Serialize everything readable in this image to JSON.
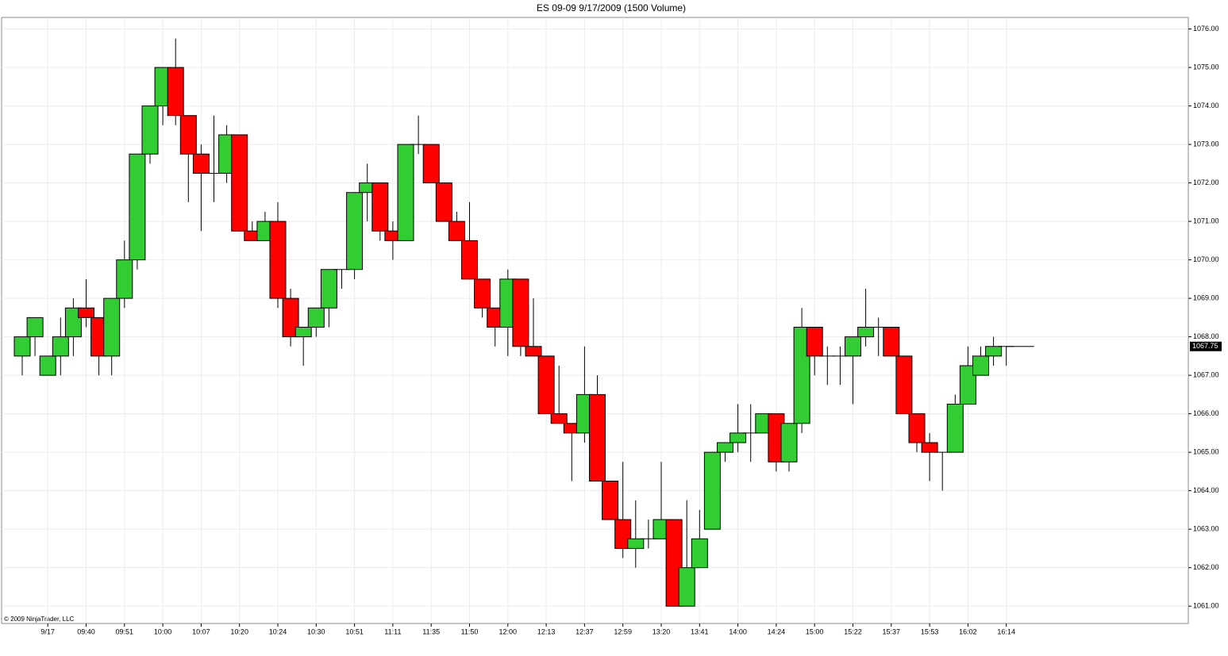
{
  "chart_data": {
    "type": "candlestick",
    "title": "ES 09-09  9/17/2009 (1500 Volume)",
    "copyright": "© 2009 NinjaTrader, LLC",
    "categories": [
      null,
      null,
      "9/17",
      null,
      null,
      "09:40",
      null,
      null,
      "09:51",
      null,
      null,
      "10:00",
      null,
      null,
      "10:07",
      null,
      null,
      "10:20",
      null,
      null,
      "10:24",
      null,
      null,
      "10:30",
      null,
      null,
      "10:51",
      null,
      null,
      "11:11",
      null,
      null,
      "11:35",
      null,
      null,
      "11:50",
      null,
      null,
      "12:00",
      null,
      null,
      "12:13",
      null,
      null,
      "12:37",
      null,
      null,
      "12:59",
      null,
      null,
      "13:20",
      null,
      null,
      "13:41",
      null,
      null,
      "14:00",
      null,
      null,
      "14:24",
      null,
      null,
      "15:00",
      null,
      null,
      "15:22",
      null,
      null,
      "15:37",
      null,
      null,
      "15:53",
      null,
      null,
      "16:02",
      null,
      null,
      "16:14"
    ],
    "open": [
      1067.5,
      1068,
      1067,
      1067.5,
      1068,
      1068.75,
      1068.5,
      1067.5,
      1069,
      1070,
      1072.75,
      1074,
      1075,
      1073.75,
      1072.75,
      1072.25,
      1072.25,
      1073.25,
      1070.75,
      1070.5,
      1071,
      1069,
      1068,
      1068.25,
      1068.75,
      1069.75,
      1069.75,
      1071.75,
      1072,
      1070.75,
      1070.5,
      1073,
      1073,
      1072,
      1071,
      1070.5,
      1069.5,
      1068.75,
      1068.25,
      1069.5,
      1067.75,
      1067.5,
      1066,
      1065.75,
      1065.5,
      1066.5,
      1064.25,
      1063.25,
      1062.5,
      1062.75,
      1062.75,
      1063.25,
      1061,
      1062,
      1063,
      1065,
      1065.25,
      1065.5,
      1065.5,
      1066,
      1064.75,
      1065.75,
      1068.25,
      1067.5,
      1067.5,
      1067.5,
      1068,
      1068.25,
      1068.25,
      1067.5,
      1066,
      1065.25,
      1065,
      1065,
      1066.25,
      1067,
      1067.5,
      1067.75
    ],
    "high": [
      1068,
      1068.5,
      1067.5,
      1068.5,
      1069,
      1069.5,
      1068.5,
      1069,
      1070.5,
      1072.75,
      1074,
      1075,
      1075.75,
      1073.75,
      1073,
      1073.75,
      1073.5,
      1073.25,
      1071,
      1071.25,
      1071.5,
      1069.25,
      1068.25,
      1068.75,
      1069.75,
      1069.75,
      1071.75,
      1072.5,
      1072,
      1071,
      1073,
      1073.75,
      1073,
      1072,
      1071.25,
      1071.5,
      1069.5,
      1068.75,
      1069.75,
      1069.5,
      1069,
      1067.5,
      1067.25,
      1065.75,
      1067.75,
      1067,
      1064.25,
      1064.75,
      1063.75,
      1063.25,
      1064.75,
      1063.25,
      1063.75,
      1063.5,
      1065,
      1065.25,
      1066.25,
      1066.25,
      1066,
      1066,
      1065.75,
      1068.75,
      1068.25,
      1067.75,
      1067.75,
      1068,
      1069.25,
      1068.5,
      1068.25,
      1067.5,
      1066,
      1065.5,
      1065,
      1066.5,
      1067.75,
      1067.75,
      1068,
      1067.75
    ],
    "low": [
      1067,
      1067.5,
      1067,
      1067,
      1067.5,
      1068.25,
      1067,
      1067,
      1068.75,
      1069.75,
      1072.5,
      1073.5,
      1073.5,
      1071.5,
      1070.75,
      1071.5,
      1072,
      1070.75,
      1070.5,
      1070.5,
      1068.75,
      1067.75,
      1067.25,
      1068,
      1068.25,
      1069.25,
      1069.5,
      1071,
      1070.5,
      1070,
      1070.5,
      1072.75,
      1072,
      1071,
      1070.5,
      1069.5,
      1068.5,
      1067.75,
      1067.5,
      1067.5,
      1067.5,
      1066,
      1065.75,
      1064.25,
      1065.25,
      1064.25,
      1063.25,
      1062.25,
      1062,
      1062.5,
      1062.75,
      1061,
      1061,
      1062,
      1063,
      1064.75,
      1065,
      1064.75,
      1065.5,
      1064.5,
      1064.5,
      1065.5,
      1067,
      1066.75,
      1066.75,
      1066.25,
      1067.75,
      1067.5,
      1067.5,
      1066,
      1065,
      1064.25,
      1064,
      1065,
      1066.25,
      1067,
      1067.25,
      1067.25
    ],
    "close": [
      1068,
      1068.5,
      1067.5,
      1068,
      1068.75,
      1068.5,
      1067.5,
      1069,
      1070,
      1072.75,
      1074,
      1075,
      1073.75,
      1072.75,
      1072.25,
      1072.25,
      1073.25,
      1070.75,
      1070.5,
      1071,
      1069,
      1068,
      1068.25,
      1068.75,
      1069.75,
      1069.75,
      1071.75,
      1072,
      1070.75,
      1070.5,
      1073,
      1073,
      1072,
      1071,
      1070.5,
      1069.5,
      1068.75,
      1068.25,
      1069.5,
      1067.75,
      1067.5,
      1066,
      1065.75,
      1065.5,
      1066.5,
      1064.25,
      1063.25,
      1062.5,
      1062.75,
      1062.75,
      1063.25,
      1061,
      1062,
      1062.75,
      1065,
      1065.25,
      1065.5,
      1065.5,
      1066,
      1064.75,
      1065.75,
      1068.25,
      1067.5,
      1067.5,
      1067.5,
      1068,
      1068.25,
      1068.25,
      1067.5,
      1066,
      1065.25,
      1065,
      1065,
      1066.25,
      1067.25,
      1067.5,
      1067.75,
      1067.75
    ],
    "up_color": "#32cd32",
    "down_color": "#ff0000",
    "last_price": {
      "value": 1067.75,
      "label": "1067.75"
    },
    "ylim": [
      1060.55,
      1076.3
    ],
    "yticks": [
      {
        "value": 1061,
        "label": "1061.00"
      },
      {
        "value": 1062,
        "label": "1062.00"
      },
      {
        "value": 1063,
        "label": "1063.00"
      },
      {
        "value": 1064,
        "label": "1064.00"
      },
      {
        "value": 1065,
        "label": "1065.00"
      },
      {
        "value": 1066,
        "label": "1066.00"
      },
      {
        "value": 1067,
        "label": "1067.00"
      },
      {
        "value": 1068,
        "label": "1068.00"
      },
      {
        "value": 1069,
        "label": "1069.00"
      },
      {
        "value": 1070,
        "label": "1070.00"
      },
      {
        "value": 1071,
        "label": "1071.00"
      },
      {
        "value": 1072,
        "label": "1072.00"
      },
      {
        "value": 1073,
        "label": "1073.00"
      },
      {
        "value": 1074,
        "label": "1074.00"
      },
      {
        "value": 1075,
        "label": "1075.00"
      },
      {
        "value": 1076,
        "label": "1076.00"
      }
    ],
    "grid": true
  }
}
